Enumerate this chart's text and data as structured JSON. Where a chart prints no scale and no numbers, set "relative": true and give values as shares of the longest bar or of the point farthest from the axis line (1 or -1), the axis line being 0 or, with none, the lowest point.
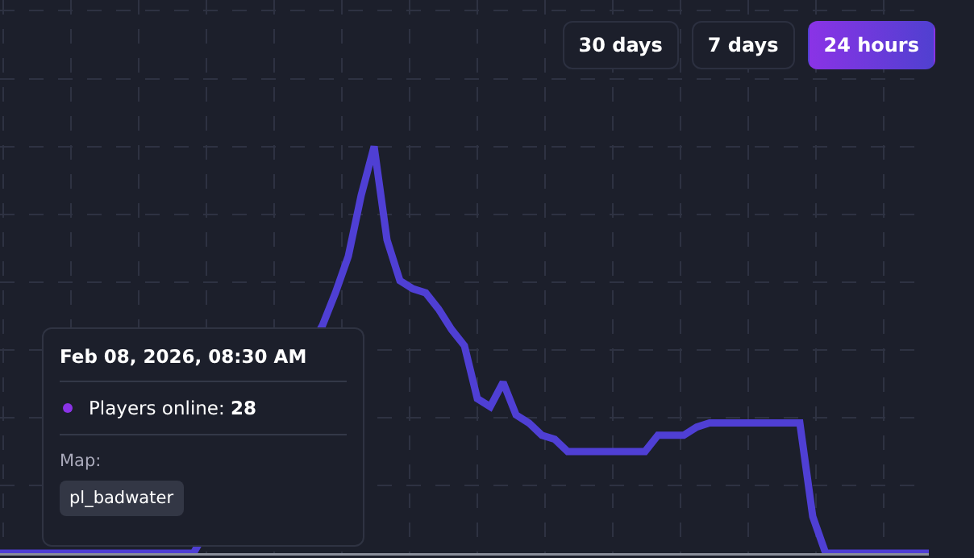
{
  "chart_data": {
    "type": "line",
    "relative": true,
    "grid": true,
    "marker": "none",
    "line_style": "solid",
    "categories": [
      null,
      null,
      null,
      null,
      null,
      null,
      null,
      null,
      null,
      null,
      null,
      null,
      null,
      null,
      null,
      null,
      null,
      null,
      null,
      null,
      null,
      null,
      null,
      null,
      null,
      null,
      null,
      null,
      null,
      null,
      null,
      null,
      null,
      null,
      null,
      null,
      null,
      null,
      null,
      null,
      null,
      null,
      null,
      null,
      null,
      null,
      null,
      null,
      null,
      null,
      null,
      null,
      null,
      null,
      null,
      null,
      null,
      null,
      null,
      null,
      null,
      null,
      null,
      null,
      null,
      null,
      null,
      null,
      null,
      null,
      null,
      null,
      null
    ],
    "series": [
      {
        "color": "#4f3fd4",
        "values": [
          0,
          0,
          0,
          0,
          0,
          0,
          0,
          0,
          0,
          0,
          0,
          0,
          0,
          0,
          0,
          0,
          null,
          null,
          null,
          null,
          null,
          null,
          null,
          null,
          null,
          0.56,
          0.64,
          0.73,
          0.88,
          1,
          0.77,
          0.67,
          0.65,
          0.64,
          0.6,
          0.55,
          0.51,
          0.38,
          0.36,
          0.42,
          0.34,
          0.32,
          0.29,
          0.28,
          0.25,
          0.25,
          0.25,
          0.25,
          0.25,
          0.25,
          0.25,
          0.29,
          0.29,
          0.29,
          0.31,
          0.32,
          0.32,
          0.32,
          0.32,
          0.32,
          0.32,
          0.32,
          0.32,
          0.09,
          0,
          0,
          0,
          0,
          0,
          0,
          0,
          0,
          0
        ]
      }
    ],
    "annotations": [
      "30 days",
      "7 days",
      "24 hours",
      "Feb 08, 2026, 08:30 AM",
      "Players online:",
      "28",
      "Map:",
      "pl_badwater"
    ]
  }
}
